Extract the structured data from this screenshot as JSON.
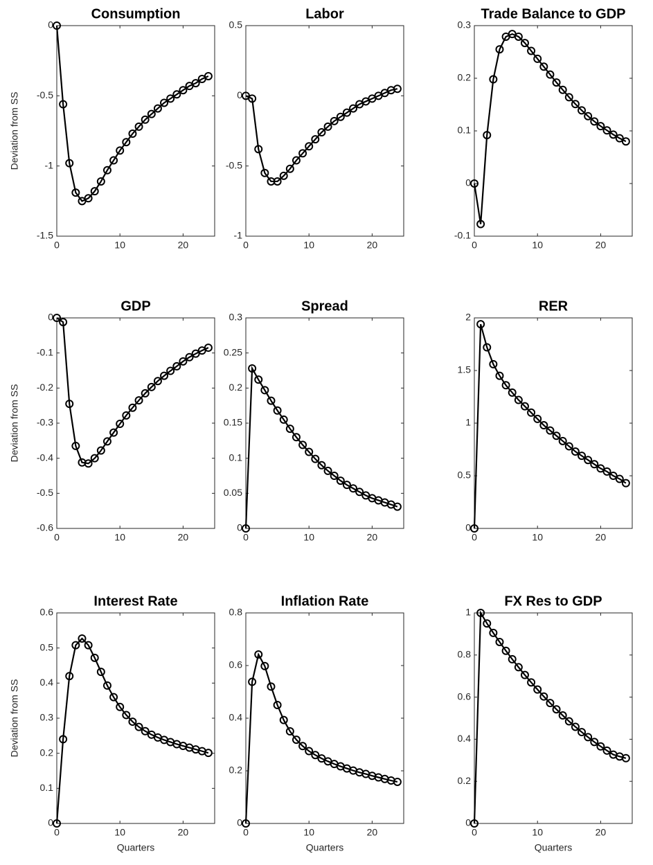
{
  "chart_data": [
    {
      "type": "line",
      "title": "Consumption",
      "ylabel": "Deviation from SS",
      "color": "#000000",
      "x": [
        0,
        1,
        2,
        3,
        4,
        5,
        6,
        7,
        8,
        9,
        10,
        11,
        12,
        13,
        14,
        15,
        16,
        17,
        18,
        19,
        20,
        21,
        22,
        23,
        24
      ],
      "values": [
        0,
        -0.56,
        -0.98,
        -1.19,
        -1.25,
        -1.23,
        -1.18,
        -1.11,
        -1.03,
        -0.96,
        -0.89,
        -0.83,
        -0.77,
        -0.72,
        -0.67,
        -0.63,
        -0.59,
        -0.55,
        -0.52,
        -0.49,
        -0.46,
        -0.43,
        -0.41,
        -0.38,
        -0.36
      ],
      "xlim": [
        0,
        25
      ],
      "xticks": [
        0,
        10,
        20
      ],
      "ylim": [
        -1.5,
        0
      ],
      "yticks": [
        -1.5,
        -1,
        -0.5,
        0
      ]
    },
    {
      "type": "line",
      "title": "Labor",
      "color": "#000000",
      "x": [
        0,
        1,
        2,
        3,
        4,
        5,
        6,
        7,
        8,
        9,
        10,
        11,
        12,
        13,
        14,
        15,
        16,
        17,
        18,
        19,
        20,
        21,
        22,
        23,
        24
      ],
      "values": [
        0,
        -0.02,
        -0.38,
        -0.55,
        -0.61,
        -0.61,
        -0.57,
        -0.52,
        -0.46,
        -0.41,
        -0.36,
        -0.31,
        -0.26,
        -0.22,
        -0.18,
        -0.15,
        -0.12,
        -0.09,
        -0.06,
        -0.04,
        -0.02,
        0,
        0.02,
        0.04,
        0.05
      ],
      "xlim": [
        0,
        25
      ],
      "xticks": [
        0,
        10,
        20
      ],
      "ylim": [
        -1,
        0.5
      ],
      "yticks": [
        -1,
        -0.5,
        0,
        0.5
      ]
    },
    {
      "type": "line",
      "title": "Trade Balance to GDP",
      "color": "#000000",
      "x": [
        0,
        1,
        2,
        3,
        4,
        5,
        6,
        7,
        8,
        9,
        10,
        11,
        12,
        13,
        14,
        15,
        16,
        17,
        18,
        19,
        20,
        21,
        22,
        23,
        24
      ],
      "values": [
        0,
        -0.077,
        0.092,
        0.198,
        0.255,
        0.279,
        0.284,
        0.279,
        0.267,
        0.252,
        0.237,
        0.222,
        0.207,
        0.192,
        0.178,
        0.164,
        0.151,
        0.139,
        0.128,
        0.118,
        0.109,
        0.101,
        0.093,
        0.086,
        0.08
      ],
      "xlim": [
        0,
        25
      ],
      "xticks": [
        0,
        10,
        20
      ],
      "ylim": [
        -0.1,
        0.3
      ],
      "yticks": [
        -0.1,
        0,
        0.1,
        0.2,
        0.3
      ]
    },
    {
      "type": "line",
      "title": "GDP",
      "ylabel": "Deviation from SS",
      "color": "#000000",
      "x": [
        0,
        1,
        2,
        3,
        4,
        5,
        6,
        7,
        8,
        9,
        10,
        11,
        12,
        13,
        14,
        15,
        16,
        17,
        18,
        19,
        20,
        21,
        22,
        23,
        24
      ],
      "values": [
        0,
        -0.012,
        -0.245,
        -0.365,
        -0.412,
        -0.415,
        -0.4,
        -0.378,
        -0.352,
        -0.327,
        -0.302,
        -0.278,
        -0.256,
        -0.235,
        -0.215,
        -0.197,
        -0.18,
        -0.165,
        -0.151,
        -0.138,
        -0.124,
        -0.112,
        -0.102,
        -0.093,
        -0.085
      ],
      "xlim": [
        0,
        25
      ],
      "xticks": [
        0,
        10,
        20
      ],
      "ylim": [
        -0.6,
        0
      ],
      "yticks": [
        -0.6,
        -0.5,
        -0.4,
        -0.3,
        -0.2,
        -0.1,
        0
      ]
    },
    {
      "type": "line",
      "title": "Spread",
      "color": "#000000",
      "x": [
        0,
        1,
        2,
        3,
        4,
        5,
        6,
        7,
        8,
        9,
        10,
        11,
        12,
        13,
        14,
        15,
        16,
        17,
        18,
        19,
        20,
        21,
        22,
        23,
        24
      ],
      "values": [
        0,
        0.228,
        0.212,
        0.197,
        0.182,
        0.168,
        0.155,
        0.142,
        0.13,
        0.119,
        0.109,
        0.099,
        0.09,
        0.082,
        0.075,
        0.068,
        0.062,
        0.057,
        0.052,
        0.047,
        0.043,
        0.04,
        0.037,
        0.034,
        0.031
      ],
      "xlim": [
        0,
        25
      ],
      "xticks": [
        0,
        10,
        20
      ],
      "ylim": [
        0,
        0.3
      ],
      "yticks": [
        0,
        0.05,
        0.1,
        0.15,
        0.2,
        0.25,
        0.3
      ]
    },
    {
      "type": "line",
      "title": "RER",
      "color": "#000000",
      "x": [
        0,
        1,
        2,
        3,
        4,
        5,
        6,
        7,
        8,
        9,
        10,
        11,
        12,
        13,
        14,
        15,
        16,
        17,
        18,
        19,
        20,
        21,
        22,
        23,
        24
      ],
      "values": [
        0,
        1.94,
        1.72,
        1.56,
        1.45,
        1.36,
        1.29,
        1.22,
        1.16,
        1.1,
        1.04,
        0.98,
        0.93,
        0.88,
        0.83,
        0.78,
        0.73,
        0.69,
        0.65,
        0.61,
        0.57,
        0.54,
        0.5,
        0.47,
        0.43
      ],
      "xlim": [
        0,
        25
      ],
      "xticks": [
        0,
        10,
        20
      ],
      "ylim": [
        0,
        2
      ],
      "yticks": [
        0,
        0.5,
        1,
        1.5,
        2
      ]
    },
    {
      "type": "line",
      "title": "Interest Rate",
      "ylabel": "Deviation from SS",
      "xlabel": "Quarters",
      "color": "#000000",
      "x": [
        0,
        1,
        2,
        3,
        4,
        5,
        6,
        7,
        8,
        9,
        10,
        11,
        12,
        13,
        14,
        15,
        16,
        17,
        18,
        19,
        20,
        21,
        22,
        23,
        24
      ],
      "values": [
        0,
        0.24,
        0.42,
        0.508,
        0.527,
        0.508,
        0.472,
        0.432,
        0.393,
        0.36,
        0.332,
        0.309,
        0.29,
        0.275,
        0.263,
        0.253,
        0.245,
        0.238,
        0.232,
        0.226,
        0.221,
        0.216,
        0.211,
        0.206,
        0.201
      ],
      "xlim": [
        0,
        25
      ],
      "xticks": [
        0,
        10,
        20
      ],
      "ylim": [
        0,
        0.6
      ],
      "yticks": [
        0,
        0.1,
        0.2,
        0.3,
        0.4,
        0.5,
        0.6
      ]
    },
    {
      "type": "line",
      "title": "Inflation Rate",
      "xlabel": "Quarters",
      "color": "#000000",
      "x": [
        0,
        1,
        2,
        3,
        4,
        5,
        6,
        7,
        8,
        9,
        10,
        11,
        12,
        13,
        14,
        15,
        16,
        17,
        18,
        19,
        20,
        21,
        22,
        23,
        24
      ],
      "values": [
        0,
        0.538,
        0.642,
        0.598,
        0.52,
        0.45,
        0.393,
        0.35,
        0.318,
        0.294,
        0.275,
        0.26,
        0.247,
        0.236,
        0.226,
        0.217,
        0.209,
        0.201,
        0.194,
        0.188,
        0.181,
        0.175,
        0.169,
        0.163,
        0.158
      ],
      "xlim": [
        0,
        25
      ],
      "xticks": [
        0,
        10,
        20
      ],
      "ylim": [
        0,
        0.8
      ],
      "yticks": [
        0,
        0.2,
        0.4,
        0.6,
        0.8
      ]
    },
    {
      "type": "line",
      "title": "FX Res to GDP",
      "xlabel": "Quarters",
      "color": "#000000",
      "x": [
        0,
        1,
        2,
        3,
        4,
        5,
        6,
        7,
        8,
        9,
        10,
        11,
        12,
        13,
        14,
        15,
        16,
        17,
        18,
        19,
        20,
        21,
        22,
        23,
        24
      ],
      "values": [
        0,
        1,
        0.95,
        0.905,
        0.862,
        0.82,
        0.78,
        0.742,
        0.705,
        0.67,
        0.636,
        0.603,
        0.572,
        0.542,
        0.513,
        0.485,
        0.459,
        0.434,
        0.41,
        0.387,
        0.366,
        0.346,
        0.327,
        0.318,
        0.31
      ],
      "xlim": [
        0,
        25
      ],
      "xticks": [
        0,
        10,
        20
      ],
      "ylim": [
        0,
        1
      ],
      "yticks": [
        0,
        0.2,
        0.4,
        0.6,
        0.8,
        1
      ]
    }
  ]
}
